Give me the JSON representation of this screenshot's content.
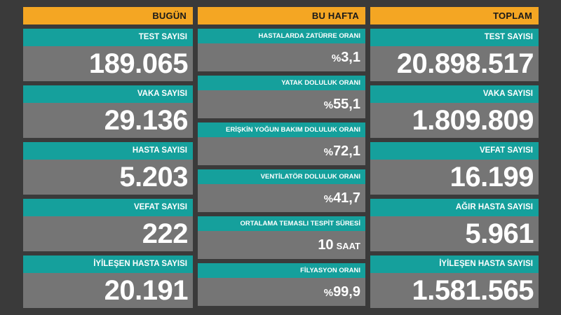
{
  "bugun": {
    "header": "BUGÜN",
    "stats": [
      {
        "label": "TEST SAYISI",
        "value": "189.065"
      },
      {
        "label": "VAKA SAYISI",
        "value": "29.136"
      },
      {
        "label": "HASTA SAYISI",
        "value": "5.203"
      },
      {
        "label": "VEFAT SAYISI",
        "value": "222"
      },
      {
        "label": "İYİLEŞEN HASTA SAYISI",
        "value": "20.191"
      }
    ]
  },
  "bu_hafta": {
    "header": "BU HAFTA",
    "stats": [
      {
        "label": "HASTALARDA ZATÜRRE ORANI",
        "prefix": "%",
        "value": "3,1",
        "unit": ""
      },
      {
        "label": "YATAK DOLULUK ORANI",
        "prefix": "%",
        "value": "55,1",
        "unit": ""
      },
      {
        "label": "ERİŞKİN YOĞUN BAKIM DOLULUK ORANI",
        "prefix": "%",
        "value": "72,1",
        "unit": ""
      },
      {
        "label": "VENTİLATÖR DOLULUK ORANI",
        "prefix": "%",
        "value": "41,7",
        "unit": ""
      },
      {
        "label": "ORTALAMA TEMASLI TESPİT SÜRESİ",
        "prefix": "",
        "value": "10",
        "unit": "SAAT"
      },
      {
        "label": "FİLYASYON ORANI",
        "prefix": "%",
        "value": "99,9",
        "unit": ""
      }
    ]
  },
  "toplam": {
    "header": "TOPLAM",
    "stats": [
      {
        "label": "TEST SAYISI",
        "value": "20.898.517"
      },
      {
        "label": "VAKA SAYISI",
        "value": "1.809.809"
      },
      {
        "label": "VEFAT SAYISI",
        "value": "16.199"
      },
      {
        "label": "AĞIR HASTA SAYISI",
        "value": "5.961"
      },
      {
        "label": "İYİLEŞEN HASTA SAYISI",
        "value": "1.581.565"
      }
    ]
  },
  "colors": {
    "background": "#3a3a3a",
    "header": "#f4a623",
    "label": "#15a09c",
    "value_box": "#757575"
  }
}
